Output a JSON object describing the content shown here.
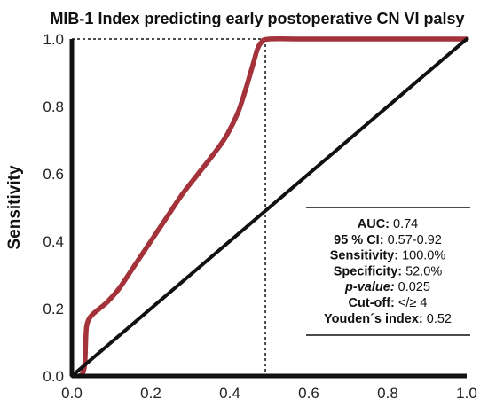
{
  "chart_data": {
    "type": "line",
    "title": "MIB-1 Index predicting early postoperative CN VI palsy",
    "xlabel": "",
    "ylabel": "Sensitivity",
    "xlim": [
      0,
      1
    ],
    "ylim": [
      0,
      1
    ],
    "x_ticks": [
      "0.0",
      "0.2",
      "0.4",
      "0.6",
      "0.8",
      "1.0"
    ],
    "y_ticks": [
      "0.0",
      "0.2",
      "0.4",
      "0.6",
      "0.8",
      "1.0"
    ],
    "series": [
      {
        "color": "#a3323a",
        "x": [
          0.02,
          0.028,
          0.033,
          0.036,
          0.04,
          0.05,
          0.07,
          0.09,
          0.12,
          0.16,
          0.2,
          0.24,
          0.28,
          0.32,
          0.36,
          0.39,
          0.42,
          0.44,
          0.46,
          0.47,
          0.48,
          0.5,
          0.6,
          0.8,
          1.0
        ],
        "y": [
          0.0,
          0.01,
          0.04,
          0.13,
          0.16,
          0.18,
          0.2,
          0.22,
          0.26,
          0.33,
          0.4,
          0.47,
          0.54,
          0.6,
          0.66,
          0.71,
          0.78,
          0.85,
          0.93,
          0.97,
          0.99,
          1.0,
          1.0,
          1.0,
          1.0
        ]
      },
      {
        "color": "#111111",
        "x": [
          0.0,
          1.0
        ],
        "y": [
          0.0,
          1.0
        ]
      }
    ],
    "cutoff_point": {
      "x": 0.49,
      "y": 1.0
    },
    "grid": false,
    "legend": "none"
  },
  "stats": [
    {
      "label": "AUC:",
      "value": "0.74",
      "italic": false
    },
    {
      "label": "95 % CI:",
      "value": "0.57-0.92",
      "italic": false
    },
    {
      "label": "Sensitivity:",
      "value": "100.0%",
      "italic": false
    },
    {
      "label": "Specificity:",
      "value": "52.0%",
      "italic": false
    },
    {
      "label": "p-value:",
      "value": "0.025",
      "italic": true
    },
    {
      "label": "Cut-off:",
      "value": "</≥ 4",
      "italic": false
    },
    {
      "label": "Youden´s index:",
      "value": "0.52",
      "italic": false
    }
  ]
}
